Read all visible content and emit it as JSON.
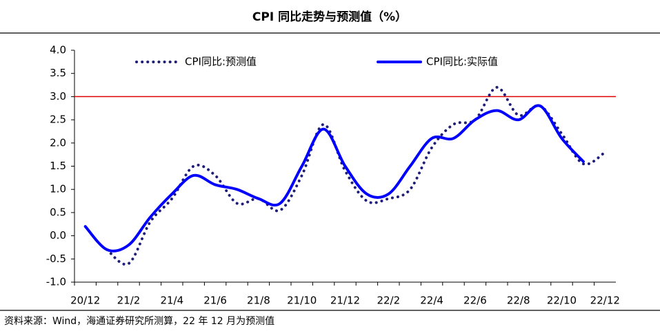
{
  "chart_data": {
    "type": "line",
    "title": "CPI 同比走势与预测值（%）",
    "source": "资料来源：Wind，海通证券研究所测算，22 年 12 月为预测值",
    "categories": [
      "20/12",
      null,
      "21/2",
      null,
      "21/4",
      null,
      "21/6",
      null,
      "21/8",
      null,
      "21/10",
      null,
      "21/12",
      null,
      "22/2",
      null,
      "22/4",
      null,
      "22/6",
      null,
      "22/8",
      null,
      "22/10",
      null,
      "22/12"
    ],
    "series": [
      {
        "name": "CPI同比:预测值",
        "color": "#1f1f7a",
        "style": "dotted",
        "values": [
          null,
          -0.3,
          -0.6,
          0.3,
          0.8,
          1.5,
          1.3,
          0.7,
          0.8,
          0.55,
          1.3,
          2.4,
          1.4,
          0.75,
          0.8,
          1.0,
          1.9,
          2.4,
          2.5,
          3.2,
          2.6,
          2.8,
          2.2,
          1.55,
          1.8
        ]
      },
      {
        "name": "CPI同比:实际值",
        "color": "#0000ff",
        "style": "solid",
        "values": [
          0.2,
          -0.3,
          -0.2,
          0.4,
          0.9,
          1.3,
          1.1,
          1.0,
          0.8,
          0.7,
          1.5,
          2.3,
          1.5,
          0.9,
          0.9,
          1.5,
          2.1,
          2.1,
          2.5,
          2.7,
          2.5,
          2.8,
          2.1,
          1.6,
          null
        ]
      }
    ],
    "reference_line": {
      "value": 3.0,
      "color": "#e00000"
    },
    "ylim": [
      -1.0,
      4.0
    ],
    "yticks": [
      {
        "value": -1.0,
        "label": "-1.0"
      },
      {
        "value": -0.5,
        "label": "-0.5"
      },
      {
        "value": 0.0,
        "label": "0.0"
      },
      {
        "value": 0.5,
        "label": "0.5"
      },
      {
        "value": 1.0,
        "label": "1.0"
      },
      {
        "value": 1.5,
        "label": "1.5"
      },
      {
        "value": 2.0,
        "label": "2.0"
      },
      {
        "value": 2.5,
        "label": "2.5"
      },
      {
        "value": 3.0,
        "label": "3.0"
      },
      {
        "value": 3.5,
        "label": "3.5"
      },
      {
        "value": 4.0,
        "label": "4.0"
      }
    ],
    "grid": false,
    "legend": "top"
  }
}
